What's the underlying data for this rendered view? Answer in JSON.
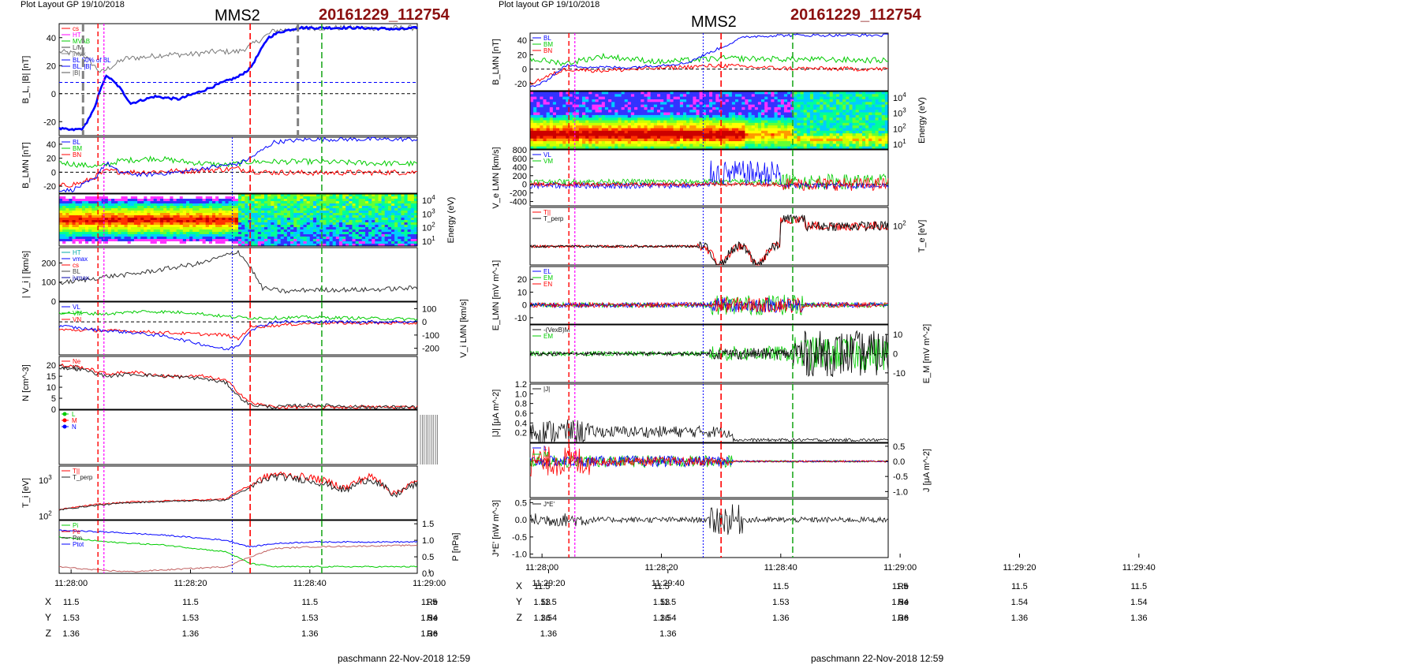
{
  "header": {
    "left": {
      "plot_layout": "Plot Layout GP 19/10/2018",
      "spacecraft": "MMS2",
      "event_id": "20161229_112754"
    },
    "right": {
      "plot_layout": "Plot layout GP 19/10/2018",
      "spacecraft": "MMS2",
      "event_id": "20161229_112754"
    }
  },
  "footer": {
    "left": "paschmann 22-Nov-2018 12:59",
    "right": "paschmann 22-Nov-2018 12:59"
  },
  "colors": {
    "event_id": "#8b1010",
    "bl": "#0000ff",
    "bm": "#00cc00",
    "bn": "#ff0000",
    "black": "#000000",
    "magenta": "#ff00ff",
    "green_dash": "#22aa22",
    "gray_dash": "#808080"
  },
  "time_axis": {
    "labels": [
      "11:28:00",
      "11:28:20",
      "11:28:40",
      "11:29:00",
      "11:29:20",
      "11:29:40"
    ],
    "x_range_s": [
      -2,
      58
    ]
  },
  "positions": {
    "unit": "Re",
    "rows": [
      {
        "name": "X",
        "values": [
          "11.5",
          "11.5",
          "11.5",
          "11.5",
          "11.5",
          "11.5"
        ]
      },
      {
        "name": "Y",
        "values": [
          "1.53",
          "1.53",
          "1.53",
          "1.54",
          "1.54",
          "1.54"
        ]
      },
      {
        "name": "Z",
        "values": [
          "1.36",
          "1.36",
          "1.36",
          "1.36",
          "1.36",
          "1.36"
        ]
      }
    ]
  },
  "chart_data": [
    {
      "type": "line",
      "figure": "left",
      "panels": [
        {
          "id": "L1",
          "ylabel": "B_L, |B| [nT]",
          "ylim": [
            -30,
            50
          ],
          "ticks": [
            "40",
            "20",
            "0",
            "-20"
          ],
          "legend": [
            "cs",
            "HT",
            "MVAB",
            "L/M",
            "jmax",
            "BL 50% of BL",
            "BL, |B|",
            "|B|"
          ],
          "series": [
            {
              "name": "BL",
              "x": [
                -2,
                0,
                2,
                4,
                5,
                6,
                8,
                10,
                14,
                18,
                22,
                26,
                28,
                30,
                33,
                35,
                38,
                42,
                48,
                55,
                58
              ],
              "values": [
                -25,
                -26,
                -25,
                -10,
                5,
                13,
                5,
                -7,
                -2,
                -4,
                2,
                9,
                12,
                18,
                40,
                44,
                47,
                47,
                47,
                46,
                47
              ]
            },
            {
              "name": "|B|",
              "x": [
                -2,
                2,
                5,
                7,
                9,
                12,
                16,
                20,
                24,
                28,
                30,
                34,
                40,
                50,
                58
              ],
              "values": [
                30,
                28,
                15,
                20,
                25,
                26,
                28,
                28,
                30,
                30,
                34,
                45,
                47,
                47,
                47
              ]
            }
          ]
        },
        {
          "id": "L2",
          "ylabel": "B_LMN [nT]",
          "ylim": [
            -30,
            50
          ],
          "ticks": [
            "40",
            "20",
            "0",
            "-20"
          ],
          "legend": [
            "BL",
            "BM",
            "BN"
          ],
          "series": [
            {
              "name": "BL",
              "x": [
                -2,
                0,
                4,
                5,
                6,
                8,
                12,
                18,
                24,
                28,
                30,
                34,
                40,
                58
              ],
              "values": [
                -25,
                -26,
                -10,
                5,
                13,
                0,
                -4,
                0,
                8,
                12,
                20,
                43,
                47,
                47
              ]
            },
            {
              "name": "BM",
              "x": [
                -2,
                2,
                5,
                8,
                14,
                20,
                26,
                30,
                40,
                50,
                58
              ],
              "values": [
                14,
                10,
                8,
                16,
                20,
                14,
                10,
                15,
                15,
                13,
                12
              ]
            },
            {
              "name": "BN",
              "x": [
                -2,
                2,
                6,
                10,
                20,
                28,
                32,
                40,
                58
              ],
              "values": [
                -20,
                -15,
                2,
                0,
                2,
                5,
                0,
                -1,
                0
              ]
            }
          ]
        },
        {
          "id": "L3",
          "type": "heatmap",
          "ylabel": "Energy (eV)",
          "ticks": [
            "10^4",
            "10^3",
            "10^2",
            "10^1"
          ]
        },
        {
          "id": "L4",
          "ylabel": "| V_i | [km/s]",
          "ylim": [
            0,
            280
          ],
          "ticks": [
            "200",
            "100",
            "0"
          ],
          "legend": [
            "HT",
            "vmax",
            "cs",
            "BL",
            "jvmax"
          ],
          "series": [
            {
              "name": "|Vi|",
              "x": [
                -2,
                2,
                6,
                10,
                14,
                18,
                22,
                26,
                28,
                30,
                32,
                36,
                40,
                50,
                58
              ],
              "values": [
                95,
                110,
                130,
                140,
                160,
                180,
                200,
                240,
                260,
                180,
                70,
                50,
                60,
                60,
                70
              ]
            }
          ]
        },
        {
          "id": "L5",
          "ylabel": "V_i LMN [km/s]",
          "ylim": [
            -250,
            150
          ],
          "ticks": [
            "100",
            "0",
            "-100",
            "-200"
          ],
          "legend": [
            "VL",
            "VM",
            "VN"
          ],
          "series": [
            {
              "name": "VL",
              "x": [
                -2,
                4,
                10,
                16,
                22,
                26,
                28,
                30,
                34,
                40,
                58
              ],
              "values": [
                -30,
                -60,
                -80,
                -110,
                -170,
                -210,
                -180,
                -60,
                0,
                0,
                0
              ]
            },
            {
              "name": "VM",
              "x": [
                -2,
                6,
                12,
                20,
                26,
                30,
                34,
                40,
                58
              ],
              "values": [
                70,
                60,
                80,
                70,
                40,
                30,
                30,
                35,
                20
              ]
            },
            {
              "name": "VN",
              "x": [
                -2,
                10,
                20,
                26,
                28,
                30,
                40,
                58
              ],
              "values": [
                -60,
                -70,
                -90,
                -100,
                -130,
                -40,
                -10,
                -10
              ]
            }
          ]
        },
        {
          "id": "L6",
          "ylabel": "N [cm^-3]",
          "ylim": [
            0,
            24
          ],
          "ticks": [
            "20",
            "15",
            "10",
            "5",
            "0"
          ],
          "legend": [
            "Ne",
            "Ni"
          ],
          "series": [
            {
              "name": "Ne",
              "x": [
                -2,
                2,
                6,
                10,
                16,
                22,
                26,
                28,
                30,
                34,
                40,
                50,
                58
              ],
              "values": [
                20,
                19,
                16,
                17,
                15,
                15,
                13,
                8,
                3,
                1,
                1,
                1,
                1
              ]
            },
            {
              "name": "Ni",
              "x": [
                -2,
                2,
                6,
                10,
                16,
                22,
                26,
                28,
                30,
                34,
                40,
                50,
                58
              ],
              "values": [
                19,
                18,
                15,
                16,
                15,
                14,
                12,
                6,
                2,
                1,
                2,
                1,
                1
              ]
            }
          ]
        },
        {
          "id": "L7",
          "ylabel": "",
          "legend": [
            "L",
            "M",
            "N"
          ]
        },
        {
          "id": "L8",
          "ylabel": "T_i [eV]",
          "ticks": [
            "10^3",
            "10^2"
          ],
          "legend": [
            "T||",
            "T_perp"
          ],
          "series": [
            {
              "name": "T||",
              "x": [
                -2,
                4,
                10,
                20,
                26,
                30,
                34,
                40,
                46,
                50,
                54,
                58
              ],
              "values": [
                150,
                210,
                250,
                280,
                300,
                700,
                1500,
                1200,
                600,
                1300,
                400,
                900
              ]
            },
            {
              "name": "T_perp",
              "x": [
                -2,
                4,
                10,
                20,
                26,
                30,
                34,
                40,
                46,
                50,
                54,
                58
              ],
              "values": [
                150,
                200,
                240,
                270,
                280,
                600,
                1300,
                1000,
                500,
                1100,
                350,
                800
              ]
            }
          ]
        },
        {
          "id": "L9",
          "ylabel": "P [nPa]",
          "ylim": [
            0,
            1.6
          ],
          "ticks": [
            "1.5",
            "1.0",
            "0.5",
            "0.0"
          ],
          "legend": [
            "Pi",
            "Pe",
            "Pm",
            "Ptot"
          ],
          "series": [
            {
              "name": "Ptot",
              "x": [
                -2,
                6,
                16,
                26,
                30,
                34,
                40,
                58
              ],
              "values": [
                1.3,
                1.25,
                1.15,
                1.0,
                0.8,
                0.9,
                0.95,
                0.95
              ]
            },
            {
              "name": "Pi",
              "x": [
                -2,
                6,
                16,
                26,
                30,
                34,
                40,
                58
              ],
              "values": [
                1.1,
                0.95,
                0.85,
                0.65,
                0.3,
                0.2,
                0.2,
                0.2
              ]
            },
            {
              "name": "Pm",
              "x": [
                -2,
                4,
                10,
                26,
                30,
                34,
                40,
                58
              ],
              "values": [
                0.2,
                0.1,
                0.05,
                0.2,
                0.5,
                0.75,
                0.8,
                0.85
              ]
            }
          ]
        }
      ]
    },
    {
      "type": "line",
      "figure": "right",
      "panels": [
        {
          "id": "R1",
          "ylabel": "B_LMN [nT]",
          "ylim": [
            -30,
            50
          ],
          "ticks": [
            "40",
            "20",
            "0",
            "-20"
          ],
          "legend": [
            "BL",
            "BM",
            "BN"
          ]
        },
        {
          "id": "R2",
          "type": "heatmap",
          "ylabel": "Energy (eV)",
          "ticks": [
            "10^4",
            "10^3",
            "10^2",
            "10^1"
          ]
        },
        {
          "id": "R3",
          "ylabel": "V_e LMN [km/s]",
          "ylim": [
            -500,
            800
          ],
          "ticks": [
            "800",
            "600",
            "400",
            "200",
            "0",
            "-200",
            "-400"
          ],
          "legend": [
            "VL",
            "VM"
          ]
        },
        {
          "id": "R4",
          "ylabel": "T_e [eV]",
          "ticks": [
            "10^2"
          ],
          "legend": [
            "T||",
            "T_perp"
          ]
        },
        {
          "id": "R5",
          "ylabel": "E_LMN [mV m^-1]",
          "ylim": [
            -15,
            30
          ],
          "ticks": [
            "20",
            "10",
            "0",
            "-10"
          ],
          "legend": [
            "EL",
            "EM",
            "EN"
          ]
        },
        {
          "id": "R6",
          "ylabel": "E_M [mV m^-2]",
          "ylim": [
            -15,
            15
          ],
          "ticks": [
            "10",
            "0",
            "-10"
          ],
          "legend": [
            "-(VexB)M",
            "EM"
          ]
        },
        {
          "id": "R7",
          "ylabel": "|J| [μA m^-2]",
          "ylim": [
            0,
            1.2
          ],
          "ticks": [
            "1.2",
            "1.0",
            "0.8",
            "0.6",
            "0.4",
            "0.2"
          ],
          "legend": [
            "|J|"
          ]
        },
        {
          "id": "R8",
          "ylabel": "J [μA m^-2]",
          "ylim": [
            -1.2,
            0.6
          ],
          "ticks": [
            "0.5",
            "0.0",
            "-0.5",
            "-1.0"
          ],
          "legend": [
            "L",
            "M",
            "N"
          ]
        },
        {
          "id": "R9",
          "ylabel": "J*E' [nW m^-3]",
          "ylim": [
            -1.1,
            0.6
          ],
          "ticks": [
            "0.5",
            "0.0",
            "-0.5",
            "-1.0"
          ],
          "legend": [
            "J*E'"
          ]
        }
      ]
    }
  ]
}
